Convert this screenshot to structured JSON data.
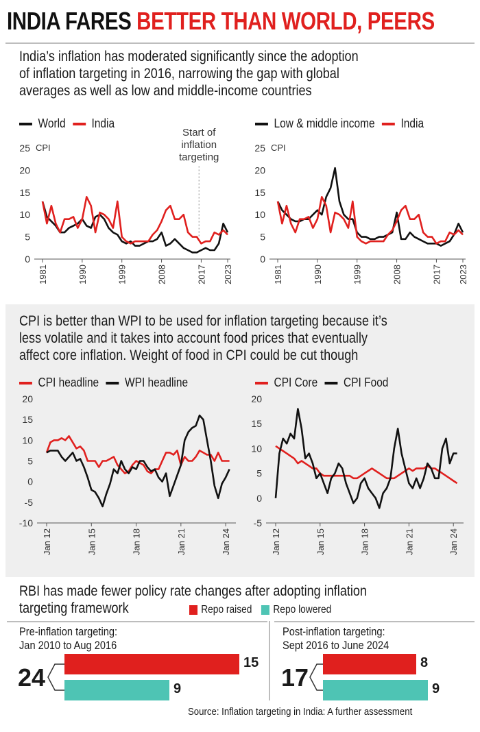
{
  "headline": {
    "part1": "INDIA FARES",
    "part2": "BETTER THAN WORLD, PEERS"
  },
  "section1": {
    "intro": [
      "India’s inflation has moderated significantly since the adoption",
      "of inflation targeting in 2016, narrowing the gap with global",
      "averages as well as low and middle-income countries"
    ],
    "annotation": [
      "Start of",
      "inflation",
      "targeting"
    ]
  },
  "section2": {
    "intro": [
      "CPI is better than WPI to be used for inflation targeting because it’s",
      "less volatile and it takes into account food prices that eventually",
      "affect core inflation. Weight of food in CPI could be cut though"
    ]
  },
  "section3": {
    "title": [
      "RBI has made fewer policy rate changes after adopting inflation",
      "targeting framework"
    ],
    "legend_raised": "Repo raised",
    "legend_lowered": "Repo lowered",
    "pre": {
      "label": [
        "Pre-inflation targeting:",
        "Jan 2010 to Aug 2016"
      ],
      "total": "24",
      "raised": 15,
      "lowered": 9
    },
    "post": {
      "label": [
        "Post-inflation targeting:",
        "Sept 2016 to June 2024"
      ],
      "total": "17",
      "raised": 8,
      "lowered": 9
    },
    "source": "Source: Inflation targeting in India: A further assessment"
  },
  "colors": {
    "red": "#e0201e",
    "black": "#111111",
    "teal": "#4ec4b4"
  },
  "chart_data": [
    {
      "type": "line",
      "ylabel": "CPI",
      "ylim": [
        0,
        25
      ],
      "yticks": [
        0,
        5,
        10,
        15,
        20,
        25
      ],
      "xticks": [
        "1981",
        "1990",
        "1999",
        "2008",
        "2017",
        "2023"
      ],
      "xlim": [
        1981,
        2023
      ],
      "series": [
        {
          "name": "World",
          "color": "#111111",
          "x": [
            1981,
            1982,
            1983,
            1984,
            1985,
            1986,
            1987,
            1988,
            1989,
            1990,
            1991,
            1992,
            1993,
            1994,
            1995,
            1996,
            1997,
            1998,
            1999,
            2000,
            2001,
            2002,
            2003,
            2004,
            2005,
            2006,
            2007,
            2008,
            2009,
            2010,
            2011,
            2012,
            2013,
            2014,
            2015,
            2016,
            2017,
            2018,
            2019,
            2020,
            2021,
            2022,
            2023
          ],
          "values": [
            13,
            9.5,
            8.5,
            7.5,
            6,
            6,
            7,
            7.5,
            8,
            9,
            7.5,
            7,
            9.5,
            10,
            9,
            7,
            6,
            5.5,
            4,
            3.5,
            4,
            3,
            3,
            3.5,
            4,
            4,
            4.5,
            6,
            3,
            3.5,
            4.5,
            3.5,
            2.5,
            2,
            1.5,
            1.5,
            2,
            2.5,
            2,
            2,
            3.5,
            8,
            6
          ]
        },
        {
          "name": "India",
          "color": "#e0201e",
          "x": [
            1981,
            1982,
            1983,
            1984,
            1985,
            1986,
            1987,
            1988,
            1989,
            1990,
            1991,
            1992,
            1993,
            1994,
            1995,
            1996,
            1997,
            1998,
            1999,
            2000,
            2001,
            2002,
            2003,
            2004,
            2005,
            2006,
            2007,
            2008,
            2009,
            2010,
            2011,
            2012,
            2013,
            2014,
            2015,
            2016,
            2017,
            2018,
            2019,
            2020,
            2021,
            2022,
            2023
          ],
          "values": [
            13,
            8,
            12,
            8,
            6,
            9,
            9,
            9.5,
            7,
            9,
            14,
            12,
            6,
            10.5,
            10,
            9,
            7,
            13,
            5,
            4,
            3.5,
            4,
            4,
            4,
            4,
            5.5,
            6.5,
            8.5,
            11,
            12,
            9,
            9,
            10,
            6,
            5,
            5,
            3.5,
            4,
            4,
            6,
            5.5,
            6.5,
            5.5
          ]
        }
      ]
    },
    {
      "type": "line",
      "ylabel": "CPI",
      "ylim": [
        0,
        25
      ],
      "yticks": [
        0,
        5,
        10,
        15,
        20,
        25
      ],
      "xticks": [
        "1981",
        "1990",
        "1999",
        "2008",
        "2017",
        "2023"
      ],
      "xlim": [
        1981,
        2023
      ],
      "series": [
        {
          "name": "Low & middle income",
          "color": "#111111",
          "x": [
            1981,
            1982,
            1983,
            1984,
            1985,
            1986,
            1987,
            1988,
            1989,
            1990,
            1991,
            1992,
            1993,
            1994,
            1995,
            1996,
            1997,
            1998,
            1999,
            2000,
            2001,
            2002,
            2003,
            2004,
            2005,
            2006,
            2007,
            2008,
            2009,
            2010,
            2011,
            2012,
            2013,
            2014,
            2015,
            2016,
            2017,
            2018,
            2019,
            2020,
            2021,
            2022,
            2023
          ],
          "values": [
            13,
            11,
            10,
            9,
            8.5,
            8.5,
            9,
            9,
            10,
            11,
            10,
            14,
            16,
            20.5,
            13,
            10,
            9,
            9,
            6,
            5,
            5,
            4.5,
            4.5,
            5,
            5,
            5.5,
            6,
            10.5,
            4.5,
            4.5,
            6,
            5,
            4.5,
            4,
            3.5,
            3.5,
            3.5,
            3,
            3.5,
            4,
            5.5,
            8,
            6
          ]
        },
        {
          "name": "India",
          "color": "#e0201e",
          "x": [
            1981,
            1982,
            1983,
            1984,
            1985,
            1986,
            1987,
            1988,
            1989,
            1990,
            1991,
            1992,
            1993,
            1994,
            1995,
            1996,
            1997,
            1998,
            1999,
            2000,
            2001,
            2002,
            2003,
            2004,
            2005,
            2006,
            2007,
            2008,
            2009,
            2010,
            2011,
            2012,
            2013,
            2014,
            2015,
            2016,
            2017,
            2018,
            2019,
            2020,
            2021,
            2022,
            2023
          ],
          "values": [
            13,
            8,
            12,
            8,
            6,
            9,
            9,
            9.5,
            7,
            9,
            14,
            12,
            6,
            10.5,
            10,
            9,
            7,
            13,
            5,
            4,
            3.5,
            4,
            4,
            4,
            4,
            5.5,
            6.5,
            8.5,
            11,
            12,
            9,
            9,
            10,
            6,
            5,
            5,
            3.5,
            4,
            4,
            6,
            5.5,
            6.5,
            5.5
          ]
        }
      ]
    },
    {
      "type": "line",
      "ylim": [
        -10,
        20
      ],
      "yticks": [
        -10,
        -5,
        0,
        5,
        10,
        15,
        20
      ],
      "xticks": [
        "Jan 12",
        "Jan 15",
        "Jan 18",
        "Jan 21",
        "Jan 24"
      ],
      "xlim": [
        2012,
        2024.5
      ],
      "series": [
        {
          "name": "CPI headline",
          "color": "#e0201e",
          "x": [
            2012,
            2012.25,
            2012.5,
            2012.75,
            2013,
            2013.25,
            2013.5,
            2013.75,
            2014,
            2014.25,
            2014.5,
            2014.75,
            2015,
            2015.25,
            2015.5,
            2015.75,
            2016,
            2016.25,
            2016.5,
            2016.75,
            2017,
            2017.25,
            2017.5,
            2017.75,
            2018,
            2018.25,
            2018.5,
            2018.75,
            2019,
            2019.25,
            2019.5,
            2019.75,
            2020,
            2020.25,
            2020.5,
            2020.75,
            2021,
            2021.25,
            2021.5,
            2021.75,
            2022,
            2022.25,
            2022.5,
            2022.75,
            2023,
            2023.25,
            2023.5,
            2023.75,
            2024,
            2024.25
          ],
          "values": [
            7,
            9.5,
            10,
            10,
            10.5,
            10,
            11,
            9.5,
            8,
            8.5,
            7.5,
            5,
            5,
            5,
            3.5,
            5,
            5,
            5.5,
            6,
            4,
            3,
            2,
            2.5,
            4,
            5,
            4.5,
            4,
            2.5,
            2,
            3,
            3,
            5,
            7,
            7,
            6.5,
            7.5,
            4,
            6,
            5,
            5,
            6,
            7.5,
            7,
            6.5,
            6.5,
            5,
            7,
            5,
            5,
            5
          ]
        },
        {
          "name": "WPI headline",
          "color": "#111111",
          "x": [
            2012,
            2012.25,
            2012.5,
            2012.75,
            2013,
            2013.25,
            2013.5,
            2013.75,
            2014,
            2014.25,
            2014.5,
            2014.75,
            2015,
            2015.25,
            2015.5,
            2015.75,
            2016,
            2016.25,
            2016.5,
            2016.75,
            2017,
            2017.25,
            2017.5,
            2017.75,
            2018,
            2018.25,
            2018.5,
            2018.75,
            2019,
            2019.25,
            2019.5,
            2019.75,
            2020,
            2020.25,
            2020.5,
            2020.75,
            2021,
            2021.25,
            2021.5,
            2021.75,
            2022,
            2022.25,
            2022.5,
            2022.75,
            2023,
            2023.25,
            2023.5,
            2023.75,
            2024,
            2024.25
          ],
          "values": [
            7,
            7.5,
            7.5,
            7.5,
            6,
            5,
            6,
            7,
            5,
            5.5,
            3.5,
            1,
            -2,
            -2.5,
            -4,
            -6,
            -3,
            -0.5,
            3,
            2,
            5,
            3,
            2,
            3.5,
            3,
            5,
            5,
            3.5,
            2.5,
            3,
            1,
            0,
            2,
            -3.5,
            -1,
            1.5,
            4,
            10,
            12,
            13,
            13.5,
            16,
            15,
            10,
            5,
            -1,
            -4,
            -0.5,
            1,
            3
          ]
        }
      ]
    },
    {
      "type": "line",
      "ylim": [
        -5,
        20
      ],
      "yticks": [
        -5,
        0,
        5,
        10,
        15,
        20
      ],
      "xticks": [
        "Jan 12",
        "Jan 15",
        "Jan 18",
        "Jan 21",
        "Jan 24"
      ],
      "xlim": [
        2012,
        2024.5
      ],
      "series": [
        {
          "name": "CPI Core",
          "color": "#e0201e",
          "x": [
            2012,
            2012.25,
            2012.5,
            2012.75,
            2013,
            2013.25,
            2013.5,
            2013.75,
            2014,
            2014.25,
            2014.5,
            2014.75,
            2015,
            2015.25,
            2015.5,
            2015.75,
            2016,
            2016.25,
            2016.5,
            2016.75,
            2017,
            2017.25,
            2017.5,
            2017.75,
            2018,
            2018.25,
            2018.5,
            2018.75,
            2019,
            2019.25,
            2019.5,
            2019.75,
            2020,
            2020.25,
            2020.5,
            2020.75,
            2021,
            2021.25,
            2021.5,
            2021.75,
            2022,
            2022.25,
            2022.5,
            2022.75,
            2023,
            2023.25,
            2023.5,
            2023.75,
            2024,
            2024.25
          ],
          "values": [
            10.5,
            10,
            9.5,
            9,
            8.5,
            8,
            7,
            7.5,
            7,
            6.5,
            6,
            6,
            5,
            4.5,
            4.5,
            4.5,
            4.5,
            4.5,
            4.5,
            4.5,
            4.5,
            4,
            4,
            4.5,
            5,
            5.5,
            6,
            5.5,
            5,
            4.5,
            4,
            4,
            4,
            4.5,
            5,
            5.5,
            6,
            5.5,
            6,
            6,
            6,
            6.5,
            6,
            6,
            5.5,
            5,
            4.5,
            4,
            3.5,
            3
          ]
        },
        {
          "name": "CPI Food",
          "color": "#111111",
          "x": [
            2012,
            2012.25,
            2012.5,
            2012.75,
            2013,
            2013.25,
            2013.5,
            2013.75,
            2014,
            2014.25,
            2014.5,
            2014.75,
            2015,
            2015.25,
            2015.5,
            2015.75,
            2016,
            2016.25,
            2016.5,
            2016.75,
            2017,
            2017.25,
            2017.5,
            2017.75,
            2018,
            2018.25,
            2018.5,
            2018.75,
            2019,
            2019.25,
            2019.5,
            2019.75,
            2020,
            2020.25,
            2020.5,
            2020.75,
            2021,
            2021.25,
            2021.5,
            2021.75,
            2022,
            2022.25,
            2022.5,
            2022.75,
            2023,
            2023.25,
            2023.5,
            2023.75,
            2024,
            2024.25
          ],
          "values": [
            0,
            9,
            12,
            11,
            13,
            12,
            18,
            14,
            8,
            9,
            7,
            4,
            5,
            3,
            1,
            4,
            5,
            7,
            6,
            3,
            1,
            -1,
            0,
            3,
            4,
            2,
            1,
            0,
            -2,
            1,
            2,
            4,
            10,
            14,
            9,
            6,
            3,
            2,
            4,
            2,
            4,
            7,
            6,
            4,
            4,
            10,
            12,
            7,
            9,
            9
          ]
        }
      ]
    }
  ]
}
